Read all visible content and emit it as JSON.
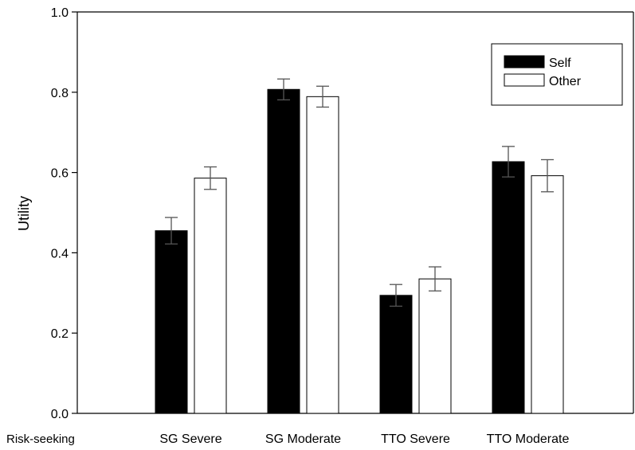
{
  "chart_data": {
    "type": "bar",
    "title": "",
    "xlabel": "",
    "ylabel": "Utility",
    "ylim": [
      0,
      1.0
    ],
    "yticks": [
      "0.0",
      "0.2",
      "0.4",
      "0.6",
      "0.8",
      "1.0"
    ],
    "categories": [
      "SG Severe",
      "SG Moderate",
      "TTO Severe",
      "TTO Moderate"
    ],
    "corner_label": "Risk-seeking",
    "series": [
      {
        "name": "Self",
        "color": "#000000",
        "values": [
          0.455,
          0.807,
          0.294,
          0.627
        ],
        "errors": [
          0.033,
          0.026,
          0.027,
          0.038
        ]
      },
      {
        "name": "Other",
        "color": "#ffffff",
        "values": [
          0.586,
          0.789,
          0.335,
          0.592
        ],
        "errors": [
          0.028,
          0.026,
          0.03,
          0.04
        ]
      }
    ],
    "legend_position": "top-right",
    "grid": false
  }
}
